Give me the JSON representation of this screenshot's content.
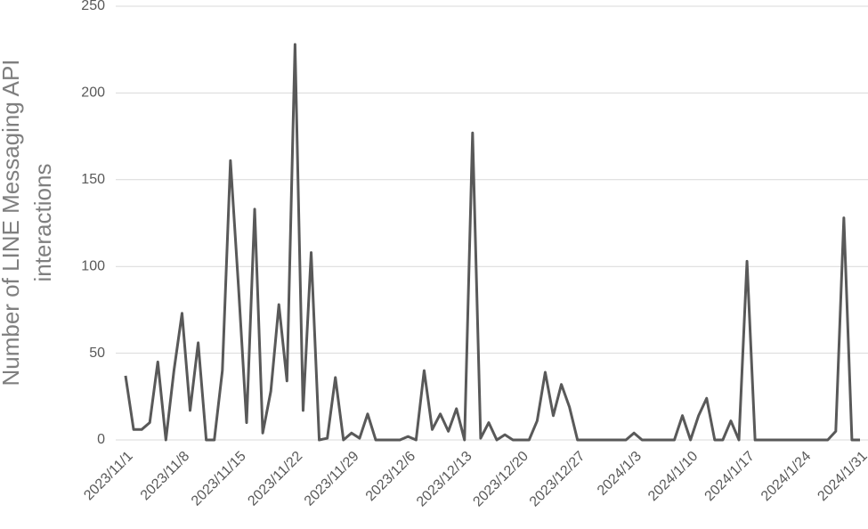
{
  "chart_data": {
    "type": "line",
    "ylabel": [
      "Number of LINE Messaging API",
      "interactions"
    ],
    "categories": [
      "2023/11/1",
      null,
      null,
      null,
      null,
      null,
      null,
      "2023/11/8",
      null,
      null,
      null,
      null,
      null,
      null,
      "2023/11/15",
      null,
      null,
      null,
      null,
      null,
      null,
      "2023/11/22",
      null,
      null,
      null,
      null,
      null,
      null,
      "2023/11/29",
      null,
      null,
      null,
      null,
      null,
      null,
      "2023/12/6",
      null,
      null,
      null,
      null,
      null,
      null,
      "2023/12/13",
      null,
      null,
      null,
      null,
      null,
      null,
      "2023/12/20",
      null,
      null,
      null,
      null,
      null,
      null,
      "2023/12/27",
      null,
      null,
      null,
      null,
      null,
      null,
      "2024/1/3",
      null,
      null,
      null,
      null,
      null,
      null,
      "2024/1/10",
      null,
      null,
      null,
      null,
      null,
      null,
      "2024/1/17",
      null,
      null,
      null,
      null,
      null,
      null,
      "2024/1/24",
      null,
      null,
      null,
      null,
      null,
      null,
      "2024/1/31"
    ],
    "series": [
      {
        "name": "interactions",
        "color": "#595959",
        "values": [
          37,
          6,
          6,
          10,
          45,
          0,
          40,
          73,
          17,
          56,
          0,
          0,
          40,
          161,
          88,
          10,
          133,
          4,
          28,
          78,
          34,
          228,
          17,
          108,
          0,
          1,
          36,
          0,
          4,
          1,
          15,
          0,
          0,
          0,
          0,
          2,
          0,
          40,
          6,
          15,
          5,
          18,
          0,
          177,
          1,
          10,
          0,
          3,
          0,
          0,
          0,
          11,
          39,
          14,
          32,
          19,
          0,
          0,
          0,
          0,
          0,
          0,
          0,
          4,
          0,
          0,
          0,
          0,
          0,
          14,
          0,
          14,
          24,
          0,
          0,
          11,
          0,
          103,
          0,
          0,
          0,
          0,
          0,
          0,
          0,
          0,
          0,
          0,
          5,
          128,
          0,
          0
        ]
      }
    ],
    "ylim": [
      0,
      250
    ],
    "yticks": [
      0,
      50,
      100,
      150,
      200,
      250
    ],
    "grid": true
  }
}
